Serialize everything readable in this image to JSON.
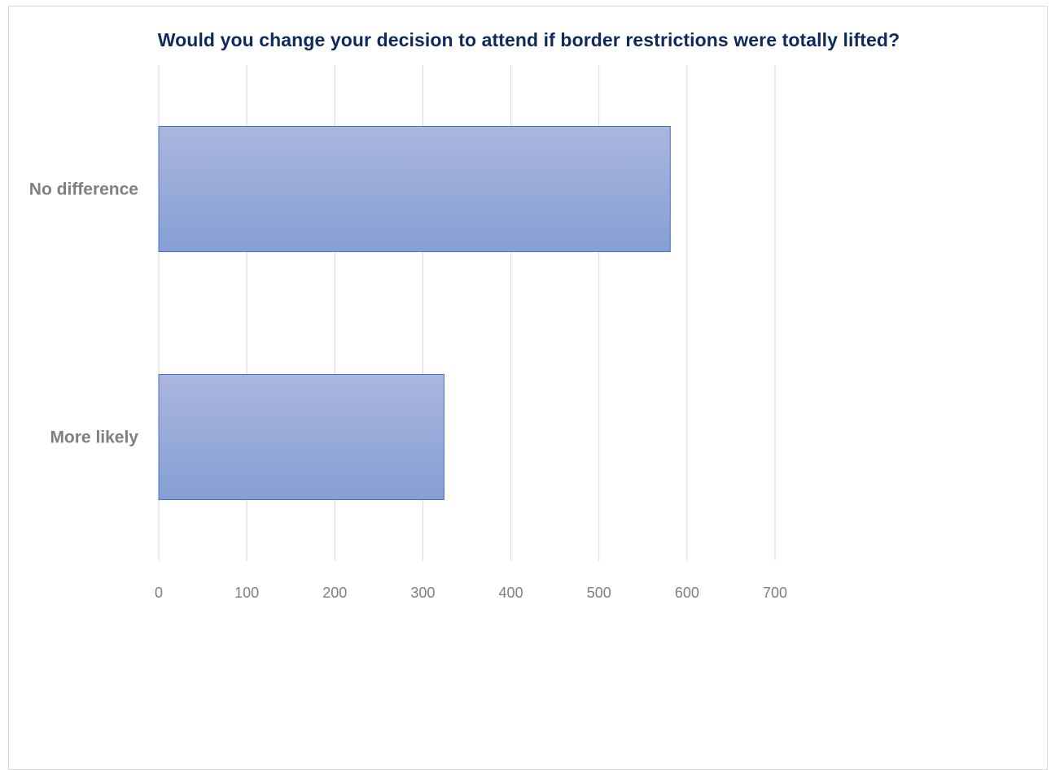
{
  "chart_data": {
    "type": "bar",
    "orientation": "horizontal",
    "title": "Would you change your decision to attend if border restrictions were totally lifted?",
    "categories": [
      "No difference",
      "More likely"
    ],
    "values": [
      581,
      324
    ],
    "xlabel": "",
    "ylabel": "",
    "xlim": [
      0,
      700
    ],
    "xticks": [
      "0",
      "100",
      "200",
      "300",
      "400",
      "500",
      "600",
      "700"
    ],
    "grid": true,
    "legend": "none",
    "colors": {
      "bar_top": "#aab6de",
      "bar_bottom": "#869fd4",
      "bar_border": "#4472c4",
      "grid": "#d9d9d9",
      "title": "#0d2a5c",
      "labels": "#7f7f7f"
    }
  }
}
